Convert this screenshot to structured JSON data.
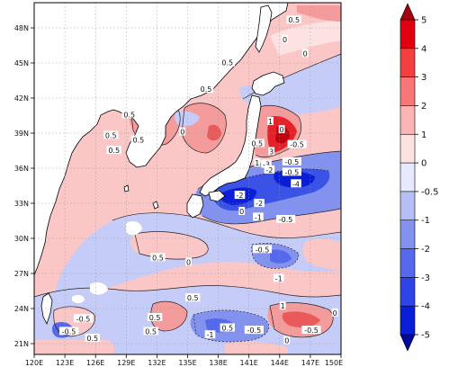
{
  "map": {
    "lon_range": [
      120,
      150
    ],
    "lat_range": [
      19.5,
      50
    ],
    "lon_ticks": [
      "120E",
      "123E",
      "126E",
      "129E",
      "132E",
      "135E",
      "138E",
      "141E",
      "144E",
      "147E",
      "150E"
    ],
    "lat_ticks": [
      "21N",
      "24N",
      "27N",
      "30N",
      "33N",
      "36N",
      "39N",
      "42N",
      "45N",
      "48N"
    ],
    "coastline_color": "#000000",
    "land_color": "#ffffff",
    "grid_on": true,
    "contour_labels": [
      {
        "text": "0.5",
        "lon": 145.4,
        "lat": 48.5
      },
      {
        "text": "0",
        "lon": 144.5,
        "lat": 46.8
      },
      {
        "text": "0",
        "lon": 146.5,
        "lat": 45.6
      },
      {
        "text": "0.5",
        "lon": 138.9,
        "lat": 44.8
      },
      {
        "text": "0.5",
        "lon": 136.8,
        "lat": 42.5
      },
      {
        "text": "0.5",
        "lon": 129.3,
        "lat": 40.3
      },
      {
        "text": "0.5",
        "lon": 127.5,
        "lat": 38.5
      },
      {
        "text": "0.5",
        "lon": 130.2,
        "lat": 38.1
      },
      {
        "text": "0",
        "lon": 134.5,
        "lat": 38.8
      },
      {
        "text": "0.5",
        "lon": 127.8,
        "lat": 37.2
      },
      {
        "text": "1",
        "lon": 143.1,
        "lat": 39.7
      },
      {
        "text": "0",
        "lon": 144.2,
        "lat": 39.0
      },
      {
        "text": "0.5",
        "lon": 141.8,
        "lat": 37.8
      },
      {
        "text": "-0.5",
        "lon": 145.7,
        "lat": 37.7
      },
      {
        "text": "3",
        "lon": 143.2,
        "lat": 37.1
      },
      {
        "text": "1",
        "lon": 141.8,
        "lat": 36.1
      },
      {
        "text": "-3",
        "lon": 142.7,
        "lat": 36.0
      },
      {
        "text": "-2",
        "lon": 143.0,
        "lat": 35.5
      },
      {
        "text": "-0.5",
        "lon": 145.2,
        "lat": 36.2
      },
      {
        "text": "-0.5",
        "lon": 145.2,
        "lat": 35.3
      },
      {
        "text": "-4",
        "lon": 145.6,
        "lat": 34.3
      },
      {
        "text": "-2",
        "lon": 140.1,
        "lat": 33.3
      },
      {
        "text": "-2",
        "lon": 142.0,
        "lat": 32.6
      },
      {
        "text": "-1",
        "lon": 141.9,
        "lat": 31.4
      },
      {
        "text": "-0.5",
        "lon": 144.6,
        "lat": 31.2
      },
      {
        "text": "0",
        "lon": 140.3,
        "lat": 31.9
      },
      {
        "text": "0.5",
        "lon": 132.1,
        "lat": 27.9
      },
      {
        "text": "0",
        "lon": 135.1,
        "lat": 27.5
      },
      {
        "text": "-0.5",
        "lon": 142.3,
        "lat": 28.6
      },
      {
        "text": "-1",
        "lon": 143.9,
        "lat": 26.1
      },
      {
        "text": "0.5",
        "lon": 135.5,
        "lat": 24.4
      },
      {
        "text": "1",
        "lon": 144.3,
        "lat": 23.7
      },
      {
        "text": "-0.5",
        "lon": 124.8,
        "lat": 22.6
      },
      {
        "text": "0.5",
        "lon": 131.8,
        "lat": 22.7
      },
      {
        "text": "0",
        "lon": 149.4,
        "lat": 23.1
      },
      {
        "text": "-0.5",
        "lon": 123.4,
        "lat": 21.5
      },
      {
        "text": "0.5",
        "lon": 125.7,
        "lat": 20.9
      },
      {
        "text": "0.5",
        "lon": 131.4,
        "lat": 21.5
      },
      {
        "text": "-1",
        "lon": 137.2,
        "lat": 21.2
      },
      {
        "text": "0.5",
        "lon": 138.9,
        "lat": 21.8
      },
      {
        "text": "-0.5",
        "lon": 141.5,
        "lat": 21.6
      },
      {
        "text": "-0.5",
        "lon": 147.1,
        "lat": 21.6
      },
      {
        "text": "0",
        "lon": 144.7,
        "lat": 20.7
      }
    ]
  },
  "colorbar": {
    "levels": [
      "5",
      "4",
      "3",
      "2",
      "1",
      "0",
      "-0.5",
      "-1",
      "-2",
      "-3",
      "-4",
      "-5"
    ],
    "colors": [
      "#a50010",
      "#e00010",
      "#f23f3f",
      "#f77777",
      "#fbb5b5",
      "#fde2e2",
      "#e6e9ff",
      "#b5bff6",
      "#8392ef",
      "#5669ea",
      "#2d44e6",
      "#0a1ed8",
      "#000a9a"
    ]
  }
}
